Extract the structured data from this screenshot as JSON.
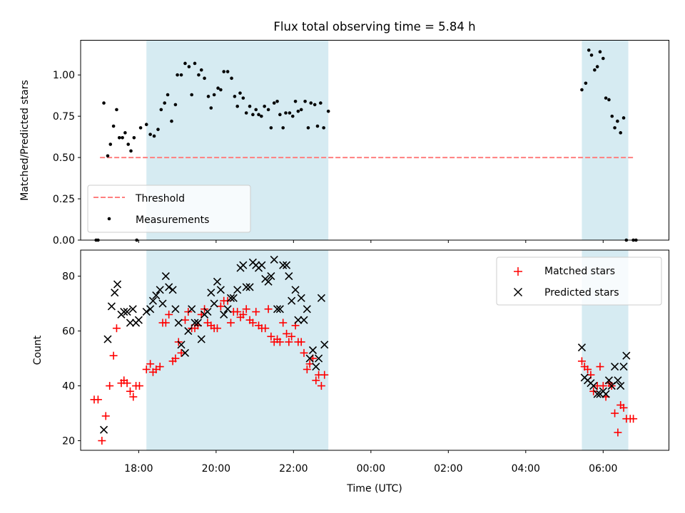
{
  "chart_data": [
    {
      "type": "scatter",
      "title": "Flux total observing time = 5.84 h",
      "xlabel": "",
      "ylabel": "Matched/Predicted stars",
      "x_unit": "hours (UTC, continuing past midnight)",
      "xlim": [
        16.5,
        31.7
      ],
      "ylim": [
        0.0,
        1.21
      ],
      "yticks": [
        0.0,
        0.25,
        0.5,
        0.75,
        1.0
      ],
      "yticklabels": [
        "0.00",
        "0.25",
        "0.50",
        "0.75",
        "1.00"
      ],
      "shaded_intervals": [
        [
          18.2,
          22.9
        ],
        [
          29.45,
          30.65
        ]
      ],
      "legend": {
        "placement": "lower-left",
        "entries": [
          "Threshold",
          "Measurements"
        ]
      },
      "series": [
        {
          "name": "Threshold",
          "style": "dashed-line",
          "color": "#ff7f7f",
          "x": [
            17.0,
            30.8
          ],
          "y": [
            0.5,
            0.5
          ]
        },
        {
          "name": "Measurements",
          "style": "dot",
          "color": "#000000",
          "x": [
            16.9,
            16.95,
            17.1,
            17.2,
            17.27,
            17.35,
            17.43,
            17.5,
            17.58,
            17.65,
            17.73,
            17.8,
            17.88,
            17.95,
            18.05,
            18.2,
            18.3,
            18.4,
            18.5,
            18.58,
            18.67,
            18.75,
            18.85,
            18.95,
            19.0,
            19.1,
            19.2,
            19.3,
            19.37,
            19.45,
            19.55,
            19.62,
            19.7,
            19.8,
            19.87,
            19.95,
            20.05,
            20.12,
            20.2,
            20.3,
            20.4,
            20.48,
            20.55,
            20.62,
            20.7,
            20.78,
            20.87,
            20.95,
            21.03,
            21.1,
            21.17,
            21.25,
            21.35,
            21.42,
            21.5,
            21.58,
            21.65,
            21.73,
            21.8,
            21.9,
            21.98,
            22.05,
            22.12,
            22.2,
            22.3,
            22.38,
            22.45,
            22.55,
            22.62,
            22.7,
            22.78,
            22.9,
            29.45,
            29.55,
            29.63,
            29.7,
            29.78,
            29.85,
            29.92,
            30.0,
            30.07,
            30.15,
            30.23,
            30.3,
            30.37,
            30.45,
            30.53,
            30.6,
            30.78,
            30.85
          ],
          "y": [
            0.0,
            0.0,
            0.83,
            0.51,
            0.58,
            0.69,
            0.79,
            0.62,
            0.62,
            0.65,
            0.58,
            0.54,
            0.62,
            0.0,
            0.68,
            0.7,
            0.64,
            0.63,
            0.67,
            0.79,
            0.83,
            0.88,
            0.72,
            0.82,
            1.0,
            1.0,
            1.07,
            1.05,
            0.88,
            1.07,
            1.0,
            1.03,
            0.98,
            0.87,
            0.8,
            0.88,
            0.92,
            0.91,
            1.02,
            1.02,
            0.98,
            0.87,
            0.81,
            0.89,
            0.86,
            0.77,
            0.81,
            0.76,
            0.79,
            0.76,
            0.75,
            0.81,
            0.79,
            0.68,
            0.83,
            0.84,
            0.76,
            0.68,
            0.77,
            0.77,
            0.75,
            0.84,
            0.78,
            0.79,
            0.84,
            0.68,
            0.83,
            0.82,
            0.69,
            0.83,
            0.68,
            0.78,
            0.91,
            0.95,
            1.15,
            1.12,
            1.03,
            1.05,
            1.14,
            1.1,
            0.86,
            0.85,
            0.75,
            0.68,
            0.72,
            0.65,
            0.74,
            0.0,
            0.0,
            0.0
          ]
        }
      ]
    },
    {
      "type": "scatter",
      "title": "",
      "xlabel": "Time (UTC)",
      "ylabel": "Count",
      "x_unit": "hours (UTC, continuing past midnight)",
      "xlim": [
        16.5,
        31.7
      ],
      "ylim": [
        16.5,
        89.5
      ],
      "yticks": [
        20,
        40,
        60,
        80
      ],
      "yticklabels": [
        "20",
        "40",
        "60",
        "80"
      ],
      "xticks": [
        18,
        20,
        22,
        24,
        26,
        28,
        30
      ],
      "xticklabels": [
        "18:00",
        "20:00",
        "22:00",
        "00:00",
        "02:00",
        "04:00",
        "06:00"
      ],
      "shaded_intervals": [
        [
          18.2,
          22.9
        ],
        [
          29.45,
          30.65
        ]
      ],
      "legend": {
        "placement": "top-right",
        "entries": [
          "Matched stars",
          "Predicted stars"
        ]
      },
      "series": [
        {
          "name": "Matched stars",
          "style": "plus",
          "color": "#ff0000",
          "x": [
            16.85,
            16.95,
            17.05,
            17.15,
            17.25,
            17.35,
            17.43,
            17.55,
            17.62,
            17.7,
            17.78,
            17.86,
            17.93,
            18.02,
            18.2,
            18.3,
            18.37,
            18.45,
            18.55,
            18.62,
            18.7,
            18.78,
            18.88,
            18.95,
            19.03,
            19.1,
            19.2,
            19.28,
            19.37,
            19.45,
            19.53,
            19.62,
            19.7,
            19.78,
            19.87,
            19.95,
            20.03,
            20.12,
            20.2,
            20.3,
            20.38,
            20.45,
            20.55,
            20.63,
            20.7,
            20.78,
            20.87,
            20.95,
            21.03,
            21.1,
            21.18,
            21.27,
            21.35,
            21.42,
            21.5,
            21.58,
            21.65,
            21.73,
            21.82,
            21.88,
            21.95,
            22.05,
            22.12,
            22.2,
            22.27,
            22.35,
            22.42,
            22.5,
            22.58,
            22.65,
            22.72,
            22.8,
            29.45,
            29.52,
            29.6,
            29.68,
            29.75,
            29.85,
            29.92,
            30.0,
            30.07,
            30.15,
            30.22,
            30.3,
            30.38,
            30.45,
            30.53,
            30.6,
            30.7,
            30.78
          ],
          "y": [
            35,
            35,
            20,
            29,
            40,
            51,
            61,
            41,
            42,
            41,
            38,
            36,
            40,
            40,
            46,
            48,
            45,
            46,
            47,
            63,
            63,
            66,
            49,
            50,
            56,
            52,
            64,
            67,
            61,
            61,
            62,
            66,
            68,
            63,
            62,
            61,
            61,
            69,
            71,
            71,
            63,
            67,
            67,
            65,
            66,
            68,
            64,
            63,
            67,
            62,
            61,
            61,
            68,
            58,
            56,
            57,
            56,
            63,
            59,
            56,
            58,
            62,
            56,
            56,
            52,
            46,
            48,
            50,
            42,
            44,
            40,
            44,
            49,
            47,
            46,
            44,
            38,
            40,
            47,
            40,
            36,
            41,
            40,
            30,
            23,
            33,
            32,
            28,
            28,
            28
          ]
        },
        {
          "name": "Predicted stars",
          "style": "x",
          "color": "#000000",
          "x": [
            17.1,
            17.2,
            17.3,
            17.38,
            17.45,
            17.55,
            17.62,
            17.7,
            17.78,
            17.85,
            17.93,
            18.0,
            18.2,
            18.3,
            18.37,
            18.45,
            18.55,
            18.62,
            18.7,
            18.78,
            18.88,
            18.95,
            19.03,
            19.1,
            19.2,
            19.28,
            19.37,
            19.45,
            19.53,
            19.62,
            19.7,
            19.78,
            19.87,
            19.95,
            20.03,
            20.12,
            20.2,
            20.3,
            20.38,
            20.45,
            20.55,
            20.63,
            20.7,
            20.78,
            20.87,
            20.95,
            21.03,
            21.1,
            21.18,
            21.27,
            21.35,
            21.42,
            21.5,
            21.58,
            21.65,
            21.73,
            21.82,
            21.88,
            21.95,
            22.05,
            22.12,
            22.2,
            22.27,
            22.35,
            22.42,
            22.5,
            22.58,
            22.65,
            22.72,
            22.8,
            29.45,
            29.52,
            29.6,
            29.68,
            29.75,
            29.85,
            29.92,
            30.0,
            30.07,
            30.15,
            30.22,
            30.3,
            30.38,
            30.45,
            30.53,
            30.6
          ],
          "y": [
            24,
            57,
            69,
            74,
            77,
            66,
            67,
            67,
            63,
            68,
            63,
            64,
            67,
            68,
            71,
            73,
            75,
            70,
            80,
            76,
            75,
            68,
            63,
            55,
            52,
            60,
            68,
            63,
            63,
            57,
            66,
            67,
            74,
            70,
            78,
            75,
            66,
            68,
            72,
            72,
            75,
            83,
            84,
            76,
            76,
            85,
            84,
            83,
            84,
            79,
            78,
            80,
            86,
            68,
            68,
            84,
            84,
            80,
            71,
            75,
            64,
            72,
            64,
            68,
            50,
            53,
            47,
            50,
            72,
            55,
            54,
            43,
            42,
            41,
            40,
            37,
            37,
            38,
            37,
            42,
            40,
            47,
            42,
            40,
            47,
            51
          ]
        }
      ]
    }
  ]
}
